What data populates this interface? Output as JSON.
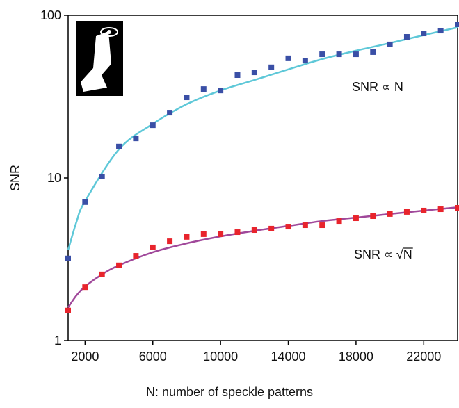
{
  "chart_data": {
    "type": "scatter",
    "x_label": "N: number of speckle patterns",
    "y_label": "SNR",
    "log_y": true,
    "xlim": [
      1000,
      24000
    ],
    "ylim": [
      1,
      100
    ],
    "xticks": [
      2000,
      6000,
      10000,
      14000,
      18000,
      22000
    ],
    "yticks": [
      1,
      10,
      100
    ],
    "x": [
      1000,
      2000,
      3000,
      4000,
      5000,
      6000,
      7000,
      8000,
      9000,
      10000,
      11000,
      12000,
      13000,
      14000,
      15000,
      16000,
      17000,
      18000,
      19000,
      20000,
      21000,
      22000,
      23000,
      24000
    ],
    "series": [
      {
        "color": "#3a4fa6",
        "values": [
          3.2,
          7.1,
          10.2,
          15.6,
          17.5,
          21.1,
          25.2,
          31.3,
          35.2,
          34.5,
          42.9,
          44.6,
          47.9,
          54.4,
          52.7,
          57.6,
          57.6,
          57.6,
          59.4,
          66.2,
          73.7,
          77.4,
          80.5,
          88
        ]
      },
      {
        "color": "#e8242c",
        "values": [
          1.53,
          2.13,
          2.55,
          2.9,
          3.32,
          3.74,
          4.08,
          4.34,
          4.51,
          4.51,
          4.64,
          4.78,
          4.88,
          5.02,
          5.12,
          5.12,
          5.43,
          5.65,
          5.82,
          6.0,
          6.18,
          6.3,
          6.42,
          6.55
        ]
      }
    ],
    "fits": [
      {
        "color": "#5ec8d8",
        "x": [
          1000,
          1500,
          2000,
          4000,
          6000,
          8000,
          10000,
          12000,
          14000,
          16000,
          18000,
          20000,
          22000,
          24000
        ],
        "values": [
          3.6,
          5.4,
          7.2,
          15,
          21.5,
          28.4,
          34.5,
          40,
          46.5,
          53.8,
          60.6,
          67.5,
          75.5,
          84.3
        ]
      },
      {
        "color": "#a0489a",
        "x": [
          1000,
          1500,
          2000,
          3000,
          4000,
          6000,
          8000,
          10000,
          12000,
          14000,
          16000,
          18000,
          20000,
          22000,
          24000
        ],
        "values": [
          1.6,
          1.9,
          2.15,
          2.55,
          2.9,
          3.49,
          3.96,
          4.37,
          4.73,
          5.07,
          5.43,
          5.7,
          6.0,
          6.3,
          6.6
        ]
      }
    ],
    "annotations": [
      "SNR ∝ N",
      "SNR ∝ √N"
    ]
  }
}
